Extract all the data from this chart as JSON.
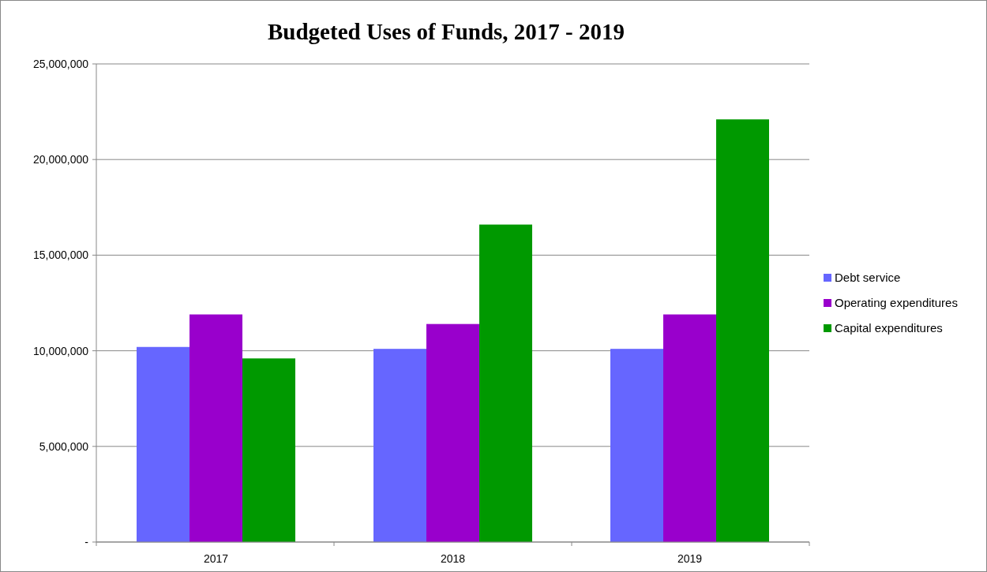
{
  "chart_data": {
    "type": "bar",
    "title": "Budgeted Uses of Funds, 2017 - 2019",
    "categories": [
      "2017",
      "2018",
      "2019"
    ],
    "series": [
      {
        "name": "Debt service",
        "color": "#6666ff",
        "values": [
          10200000,
          10100000,
          10100000
        ]
      },
      {
        "name": "Operating expenditures",
        "color": "#9900cc",
        "values": [
          11900000,
          11400000,
          11900000
        ]
      },
      {
        "name": "Capital expenditures",
        "color": "#009900",
        "values": [
          9600000,
          16600000,
          22100000
        ]
      }
    ],
    "ylim": [
      0,
      25000000
    ],
    "yticks": [
      {
        "value": 0,
        "label": "-"
      },
      {
        "value": 5000000,
        "label": "5,000,000"
      },
      {
        "value": 10000000,
        "label": "10,000,000"
      },
      {
        "value": 15000000,
        "label": "15,000,000"
      },
      {
        "value": 20000000,
        "label": "20,000,000"
      },
      {
        "value": 25000000,
        "label": "25,000,000"
      }
    ],
    "grid": "y",
    "legend": "right"
  }
}
